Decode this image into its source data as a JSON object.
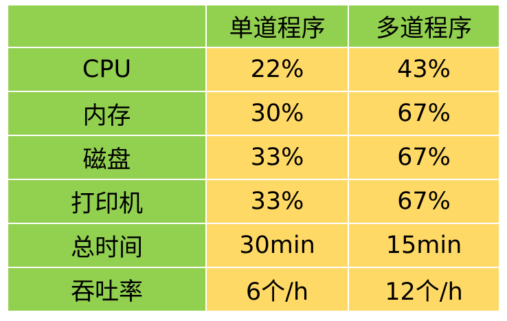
{
  "table": {
    "header": {
      "corner": "",
      "columns": [
        "单道程序",
        "多道程序"
      ]
    },
    "rows": [
      {
        "label": "CPU",
        "single": "22%",
        "multi": "43%"
      },
      {
        "label": "内存",
        "single": "30%",
        "multi": "67%"
      },
      {
        "label": "磁盘",
        "single": "33%",
        "multi": "67%"
      },
      {
        "label": "打印机",
        "single": "33%",
        "multi": "67%"
      },
      {
        "label": "总时间",
        "single": "30min",
        "multi": "15min"
      },
      {
        "label": "吞吐率",
        "single": "6个/h",
        "multi": "12个/h"
      }
    ]
  },
  "colors": {
    "header_and_label_bg": "#92d050",
    "value_cell_bg": "#ffd966",
    "grid_line": "#ffffff"
  }
}
